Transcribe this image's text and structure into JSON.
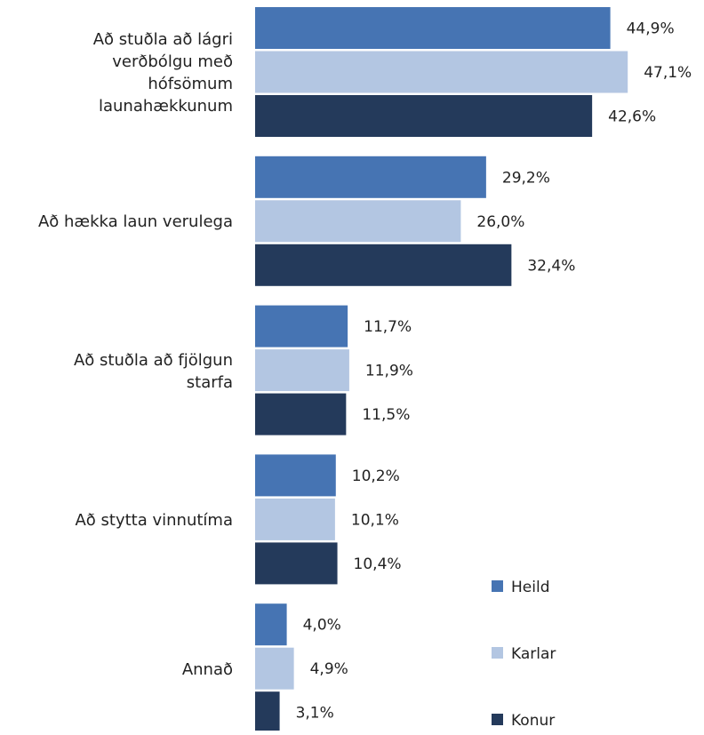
{
  "chart_data": {
    "type": "bar",
    "orientation": "horizontal",
    "categories": [
      "Að stuðla að lágri verðbólgu með hófsömum launahækkunum",
      "Að hækka laun verulega",
      "Að stuðla að fjölgun starfa",
      "Að stytta vinnutíma",
      "Annað"
    ],
    "series": [
      {
        "name": "Heild",
        "color": "#4674b3",
        "values": [
          44.9,
          29.2,
          11.7,
          10.2,
          4.0
        ],
        "value_labels": [
          "44,9%",
          "29,2%",
          "11,7%",
          "10,2%",
          "4,0%"
        ]
      },
      {
        "name": "Karlar",
        "color": "#b3c6e2",
        "values": [
          47.1,
          26.0,
          11.9,
          10.1,
          4.9
        ],
        "value_labels": [
          "47,1%",
          "26,0%",
          "11,9%",
          "10,1%",
          "4,9%"
        ]
      },
      {
        "name": "Konur",
        "color": "#243a5b",
        "values": [
          42.6,
          32.4,
          11.5,
          10.4,
          3.1
        ],
        "value_labels": [
          "42,6%",
          "32,4%",
          "11,5%",
          "10,4%",
          "3,1%"
        ]
      }
    ],
    "legend": "bottom-right"
  }
}
